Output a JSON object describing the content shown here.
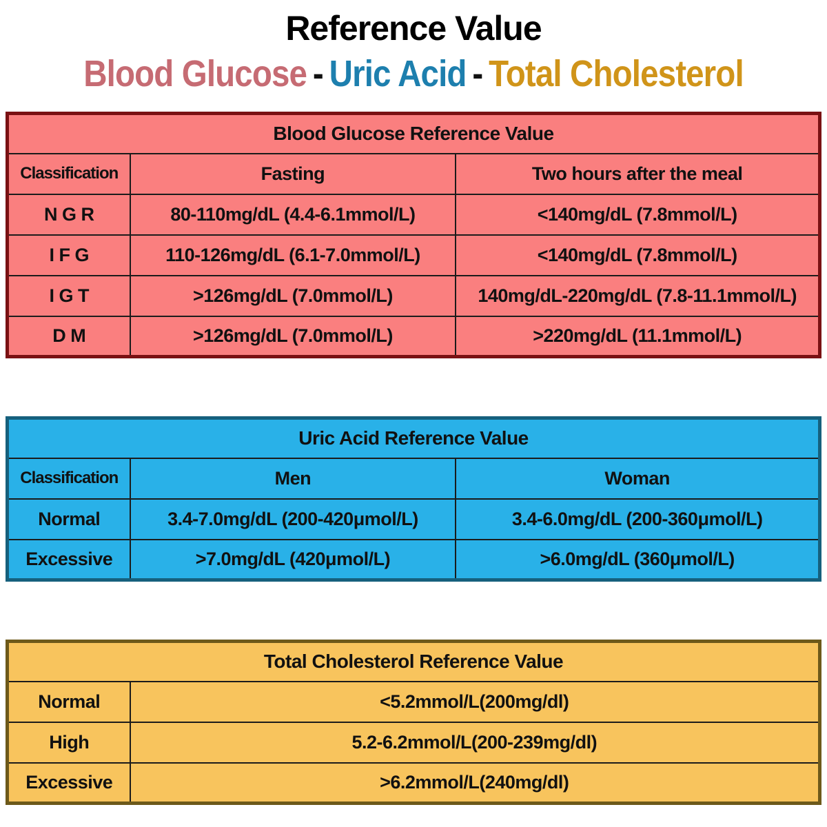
{
  "page": {
    "title": "Reference Value",
    "subtitle": {
      "separator": "-",
      "items": [
        {
          "text": "Blood Glucose",
          "color": "#c66b73"
        },
        {
          "text": "Uric Acid",
          "color": "#1d7fae"
        },
        {
          "text": "Total Cholesterol",
          "color": "#d09419"
        }
      ]
    }
  },
  "chart_data": [
    {
      "type": "table",
      "title": "Blood Glucose Reference Value",
      "colors": {
        "background": "#fa7f7f",
        "border": "#7a1113"
      },
      "headers": [
        "Classification",
        "Fasting",
        "Two hours after the meal"
      ],
      "rows": [
        [
          "N G R",
          "80-110mg/dL (4.4-6.1mmol/L)",
          "<140mg/dL (7.8mmol/L)"
        ],
        [
          "I F G",
          "110-126mg/dL (6.1-7.0mmol/L)",
          "<140mg/dL (7.8mmol/L)"
        ],
        [
          "I G T",
          ">126mg/dL (7.0mmol/L)",
          "140mg/dL-220mg/dL (7.8-11.1mmol/L)"
        ],
        [
          "D M",
          ">126mg/dL (7.0mmol/L)",
          ">220mg/dL (11.1mmol/L)"
        ]
      ]
    },
    {
      "type": "table",
      "title": "Uric Acid Reference Value",
      "colors": {
        "background": "#29b1e8",
        "border": "#16607d"
      },
      "headers": [
        "Classification",
        "Men",
        "Woman"
      ],
      "rows": [
        [
          "Normal",
          "3.4-7.0mg/dL (200-420μmol/L)",
          "3.4-6.0mg/dL (200-360μmol/L)"
        ],
        [
          "Excessive",
          ">7.0mg/dL (420μmol/L)",
          ">6.0mg/dL (360μmol/L)"
        ]
      ]
    },
    {
      "type": "table",
      "title": "Total Cholesterol Reference Value",
      "colors": {
        "background": "#f8c45d",
        "border": "#6d591a"
      },
      "headers": [],
      "rows": [
        [
          "Normal",
          "<5.2mmol/L(200mg/dl)"
        ],
        [
          "High",
          "5.2-6.2mmol/L(200-239mg/dl)"
        ],
        [
          "Excessive",
          ">6.2mmol/L(240mg/dl)"
        ]
      ]
    }
  ]
}
